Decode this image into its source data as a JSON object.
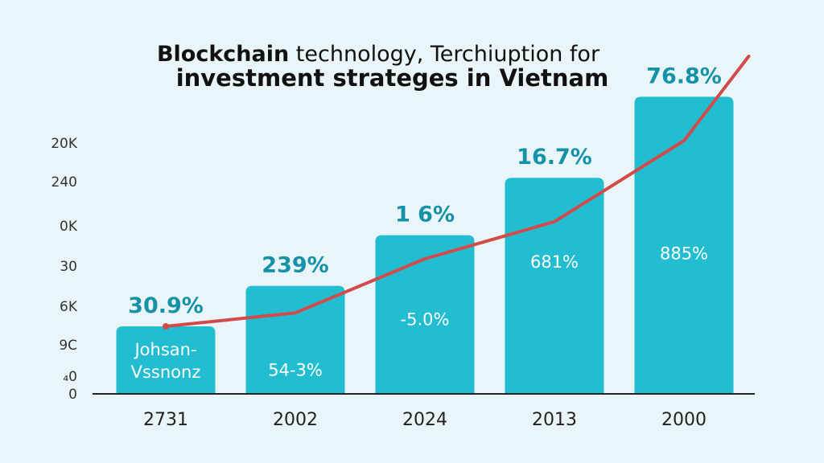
{
  "title": {
    "line1_bold": "Blockchain",
    "line1_rest": " technology, Terchiuption for",
    "line2": "investment strateges in Vietnam"
  },
  "chart_data": {
    "type": "bar",
    "title": "Blockchain technology, Terchiuption for investment strateges in Vietnam",
    "categories": [
      "2731",
      "2002",
      "2024",
      "2013",
      "2000"
    ],
    "y_tick_labels": [
      "20K",
      "240",
      "0K",
      "30",
      "6K",
      "9C",
      "₄0",
      "0"
    ],
    "ylim": [
      0,
      100
    ],
    "values": [
      20,
      32,
      47,
      64,
      88
    ],
    "top_labels": [
      "30.9%",
      "239%",
      "1 6%",
      "16.7%",
      "76.8%"
    ],
    "inner_labels": [
      "Johsan-\nVssnonz",
      "54-3%",
      "-5.0%",
      "681%",
      "885%"
    ],
    "line": {
      "x": [
        0,
        1,
        2,
        3,
        4,
        4.5
      ],
      "y": [
        20,
        24,
        40,
        51,
        75,
        100
      ]
    },
    "grid": false,
    "colors": {
      "bar": "#22bdd1",
      "line": "#d24b4b",
      "top_label": "#1592a8",
      "background": "#e9f5f9"
    }
  }
}
